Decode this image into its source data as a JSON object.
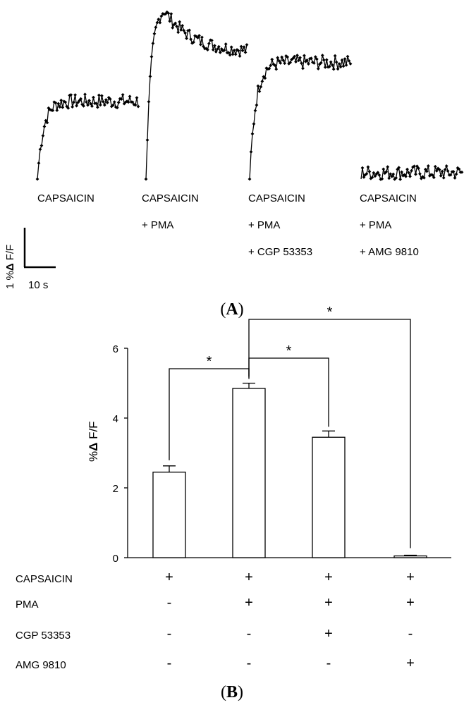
{
  "panel_a": {
    "label_letter": "A",
    "traces": [
      {
        "name": "CAPSAICIN",
        "lines": [
          "CAPSAICIN"
        ],
        "baseline": 0.0,
        "peak": 2.4,
        "plateau": 2.4,
        "noise": 0.22
      },
      {
        "name": "CAPSAICIN + PMA",
        "lines": [
          "CAPSAICIN",
          "+ PMA"
        ],
        "baseline": 0.0,
        "peak": 5.2,
        "plateau": 3.9,
        "noise": 0.2
      },
      {
        "name": "CAPSAICIN + PMA + CGP 53353",
        "lines": [
          "CAPSAICIN",
          "+ PMA",
          "+ CGP 53353"
        ],
        "baseline": 0.0,
        "peak": 3.9,
        "plateau": 3.6,
        "noise": 0.22
      },
      {
        "name": "CAPSAICIN + PMA + AMG 9810",
        "lines": [
          "CAPSAICIN",
          "+ PMA",
          "+ AMG 9810"
        ],
        "baseline": 0.0,
        "peak": 0.0,
        "plateau": 0.2,
        "noise": 0.22
      }
    ],
    "scale_bar": {
      "y_label_prefix": "1 %",
      "y_label_symbol": "Δ",
      "y_label_suffix": " F/F",
      "x_label": "10 s"
    }
  },
  "panel_b": {
    "label_letter": "B"
  },
  "chart_data": {
    "type": "bar",
    "title": "",
    "xlabel": "",
    "ylabel": "% Δ F/F",
    "ylabel_parts": {
      "prefix": "%",
      "symbol": "Δ",
      "suffix": " F/F"
    },
    "ylim": [
      0,
      6
    ],
    "yticks": [
      0,
      2,
      4,
      6
    ],
    "categories": [
      "CAPSAICIN",
      "CAPSAICIN + PMA",
      "CAPSAICIN + PMA + CGP 53353",
      "CAPSAICIN + PMA + AMG 9810"
    ],
    "values": [
      2.45,
      4.85,
      3.45,
      0.05
    ],
    "errors": [
      0.18,
      0.15,
      0.18,
      0.02
    ],
    "significance": [
      {
        "from": 0,
        "to": 1,
        "label": "*"
      },
      {
        "from": 1,
        "to": 2,
        "label": "*"
      },
      {
        "from": 1,
        "to": 3,
        "label": "*"
      }
    ],
    "condition_table": {
      "rows": [
        {
          "name": "CAPSAICIN",
          "marks": [
            "+",
            "+",
            "+",
            "+"
          ]
        },
        {
          "name": "PMA",
          "marks": [
            "-",
            "+",
            "+",
            "+"
          ]
        },
        {
          "name": "CGP 53353",
          "marks": [
            "-",
            "-",
            "+",
            "-"
          ]
        },
        {
          "name": "AMG 9810",
          "marks": [
            "-",
            "-",
            "-",
            "+"
          ]
        }
      ]
    }
  }
}
